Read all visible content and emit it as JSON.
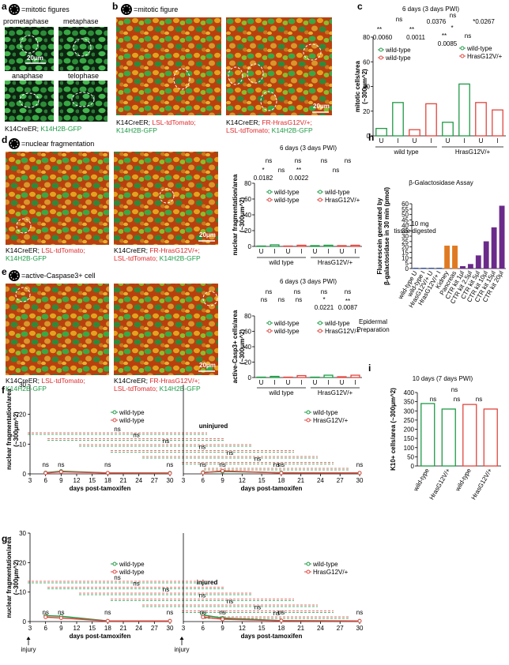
{
  "panels": {
    "a": {
      "label": "a",
      "legend": "=mitotic figures",
      "phases": [
        "prometaphase",
        "metaphase",
        "anaphase",
        "telophase"
      ],
      "scale": "20μm",
      "caption": [
        "K14CreER; ",
        "K14H2B-GFP"
      ]
    },
    "b": {
      "label": "b",
      "legend": "=mitotic figure",
      "scale": "20μm",
      "caption_left": [
        "K14CreER; ",
        "LSL-tdTomato;",
        "K14H2B-GFP"
      ],
      "caption_right": [
        "K14CreER; ",
        "FR-HrasG12V/+;",
        "LSL-tdTomato;",
        "K14H2B-GFP"
      ]
    },
    "c": {
      "label": "c"
    },
    "d": {
      "label": "d",
      "legend": "=nuclear fragmentation",
      "scale": "20μm",
      "caption_left": [
        "K14CreER; ",
        "LSL-tdTomato;",
        "K14H2B-GFP"
      ],
      "caption_right": [
        "K14CreER; ",
        "FR-HrasG12V/+;",
        "LSL-tdTomato;",
        "K14H2B-GFP"
      ]
    },
    "e": {
      "label": "e",
      "legend": "=active-Caspase3+ cell",
      "scale": "20μm",
      "caption_left": [
        "K14CreER; ",
        "LSL-tdTomato;",
        "K14H2B-GFP"
      ],
      "caption_right": [
        "K14CreER; ",
        "FR-HrasG12V/+;",
        "LSL-tdTomato;",
        "K14H2B-GFP"
      ]
    },
    "h": {
      "label": "h"
    },
    "i": {
      "label": "i"
    },
    "f": {
      "label": "f"
    },
    "g": {
      "label": "g"
    }
  },
  "chart_data": [
    {
      "type": "bar",
      "title": "6 days (3 days PWI)",
      "y_label": [
        "mitotic cells/area",
        "(~300μm^2)"
      ],
      "ylim": [
        0,
        80
      ],
      "yticks": [
        0,
        20,
        40,
        60,
        80
      ],
      "filled": false,
      "categories": [
        "U",
        "I",
        "U",
        "I",
        "U",
        "I",
        "U",
        "I"
      ],
      "groups": [
        "wild type",
        "HrasG12V/+"
      ],
      "values": [
        6,
        27,
        5,
        26,
        11,
        42,
        27,
        21
      ],
      "colors": [
        "#1f9a46",
        "#1f9a46",
        "#e0463e",
        "#e0463e",
        "#1f9a46",
        "#1f9a46",
        "#e0463e",
        "#e0463e"
      ],
      "legend": [
        {
          "name": "wild-type",
          "color": "#1f9a46"
        },
        {
          "name": "wild-type",
          "color": "#e0463e"
        },
        {
          "name": "wild-type",
          "color": "#1f9a46"
        },
        {
          "name": "HrasG12V/+",
          "color": "#e0463e"
        }
      ],
      "annotations": [
        "ns",
        "**",
        "**",
        "0.0060",
        "0.0011",
        "0.0376",
        "*",
        "ns",
        "*0.0267",
        "**",
        "ns",
        "0.0085"
      ]
    },
    {
      "type": "bar",
      "title": "6 days (3 days PWI)",
      "y_label": [
        "nuclear fragmentation/area",
        "(~300μm^2)"
      ],
      "ylim": [
        0,
        80
      ],
      "yticks": [
        0,
        20,
        40,
        60,
        80
      ],
      "filled": false,
      "categories": [
        "U",
        "I",
        "U",
        "I",
        "U",
        "I",
        "U",
        "I"
      ],
      "groups": [
        "wild type",
        "HrasG12V/+"
      ],
      "values": [
        0.5,
        2,
        0.5,
        1.5,
        1,
        1.5,
        1,
        1.5
      ],
      "colors": [
        "#1f9a46",
        "#1f9a46",
        "#e0463e",
        "#e0463e",
        "#1f9a46",
        "#1f9a46",
        "#e0463e",
        "#e0463e"
      ],
      "legend": [
        {
          "name": "wild-type",
          "color": "#1f9a46"
        },
        {
          "name": "wild-type",
          "color": "#e0463e"
        },
        {
          "name": "wild-type",
          "color": "#1f9a46"
        },
        {
          "name": "HrasG12V/+",
          "color": "#e0463e"
        }
      ],
      "annotations": [
        "ns",
        "ns",
        "*",
        "ns",
        "**",
        "0.0182",
        "0.0022",
        "ns",
        "ns",
        "ns"
      ]
    },
    {
      "type": "bar",
      "title": "6 days (3 days PWI)",
      "y_label": [
        "active-Casp3+ cells/area",
        "(~300μm^2)"
      ],
      "ylim": [
        0,
        80
      ],
      "yticks": [
        0,
        20,
        40,
        60,
        80
      ],
      "filled": false,
      "categories": [
        "U",
        "I",
        "U",
        "I",
        "U",
        "I",
        "U",
        "I"
      ],
      "groups": [
        "wild type",
        "HrasG12V/+"
      ],
      "values": [
        0.5,
        1.5,
        0.5,
        2.5,
        0.5,
        3,
        1,
        3
      ],
      "colors": [
        "#1f9a46",
        "#1f9a46",
        "#e0463e",
        "#e0463e",
        "#1f9a46",
        "#1f9a46",
        "#e0463e",
        "#e0463e"
      ],
      "legend": [
        {
          "name": "wild-type",
          "color": "#1f9a46"
        },
        {
          "name": "wild-type",
          "color": "#e0463e"
        },
        {
          "name": "wild-type",
          "color": "#1f9a46"
        },
        {
          "name": "HrasG12V/+",
          "color": "#e0463e"
        }
      ],
      "annotations": [
        "ns",
        "ns",
        "ns",
        "ns",
        "ns",
        "ns",
        "ns",
        "*",
        "**",
        "0.0221",
        "0.0087"
      ]
    },
    {
      "type": "bar",
      "title": "β-Galactosidase Assay",
      "y_label": [
        "Fluorescein generated by",
        "β-galactosidase in 30 min (pmol)"
      ],
      "ylim": [
        0,
        60
      ],
      "yticks": [
        0,
        5,
        10,
        15,
        20,
        25,
        30,
        35,
        40,
        45,
        50,
        55,
        60
      ],
      "filled": true,
      "categories": [
        "wild-type U",
        "wild-type I",
        "HrasG12V/+ U",
        "HrasG12V/+ I",
        "Kidney",
        "Pancreas",
        "CTR kit 1μl",
        "CTR kit 2.5μl",
        "CTR kit 5μl",
        "CTR kit 10μl",
        "CTR kit 15μl",
        "CTR kit 20μl"
      ],
      "values": [
        0.5,
        0.5,
        0.5,
        0.5,
        21,
        21,
        2,
        4,
        12,
        25,
        38,
        58
      ],
      "colors": [
        "#2f4f9e",
        "#2f4f9e",
        "#2f4f9e",
        "#2f4f9e",
        "#e07a22",
        "#e07a22",
        "#6a2a8a",
        "#6a2a8a",
        "#6a2a8a",
        "#6a2a8a",
        "#6a2a8a",
        "#6a2a8a"
      ],
      "annotations": [
        "~ 10 mg",
        "tissue digested",
        "Epidermal",
        "Preparation"
      ]
    },
    {
      "type": "bar",
      "title": "10 days (7 days PWI)",
      "y_label": [
        "K10+ cells/area (~300μm^2)"
      ],
      "ylim": [
        0,
        400
      ],
      "yticks": [
        0,
        50,
        100,
        150,
        200,
        250,
        300,
        350,
        400
      ],
      "filled": false,
      "categories": [
        "wild-type",
        "HrasG12V/+",
        "wild-type",
        "HrasG12V/+"
      ],
      "values": [
        340,
        310,
        335,
        310
      ],
      "colors": [
        "#1f9a46",
        "#1f9a46",
        "#e0463e",
        "#e0463e"
      ],
      "annotations": [
        "ns",
        "ns",
        "ns",
        "ns"
      ]
    },
    {
      "type": "line",
      "title": "uninjured",
      "y_label": [
        "nuclear fragmentation/area",
        "(~300μm^2)"
      ],
      "x_label": "days post-tamoxifen",
      "ylim": [
        0,
        30
      ],
      "yticks": [
        0,
        10,
        20,
        30
      ],
      "xlim": [
        3,
        30
      ],
      "xticks": [
        3,
        6,
        9,
        12,
        15,
        18,
        21,
        24,
        27,
        30
      ],
      "panels": [
        {
          "x": [
            6,
            9,
            18,
            30
          ],
          "labels": [
            "ns",
            "ns",
            "ns",
            "ns"
          ],
          "series": [
            {
              "name": "wild-type",
              "color": "#1f9a46",
              "values": [
                0.4,
                0.9,
                0.3,
                0.3
              ]
            },
            {
              "name": "wild-type",
              "color": "#e0463e",
              "values": [
                0.3,
                0.7,
                0.3,
                0.2
              ]
            }
          ]
        },
        {
          "x": [
            6,
            9,
            18,
            30
          ],
          "labels": [
            "ns",
            "ns",
            "ns",
            "ns"
          ],
          "series": [
            {
              "name": "wild-type",
              "color": "#1f9a46",
              "values": [
                0.5,
                0.8,
                0.4,
                0.3
              ]
            },
            {
              "name": "HrasG12V/+",
              "color": "#e0463e",
              "values": [
                0.4,
                1.0,
                0.3,
                0.3
              ]
            }
          ]
        }
      ],
      "annotations": [
        "ns",
        "ns",
        "ns",
        "ns",
        "ns",
        "ns",
        "ns"
      ]
    },
    {
      "type": "line",
      "title": "injured",
      "y_label": [
        "nuclear fragmentation/area",
        "(~300μm^2)"
      ],
      "x_label": "days post-tamoxifen",
      "ylim": [
        0,
        30
      ],
      "yticks": [
        0,
        10,
        20,
        30
      ],
      "xlim": [
        3,
        30
      ],
      "xticks": [
        3,
        6,
        9,
        12,
        15,
        18,
        21,
        24,
        27,
        30
      ],
      "panels": [
        {
          "x": [
            6,
            9,
            18,
            30
          ],
          "labels": [
            "ns",
            "ns",
            "ns",
            "ns"
          ],
          "series": [
            {
              "name": "wild-type",
              "color": "#1f9a46",
              "values": [
                2,
                1.8,
                0.2,
                0.2
              ]
            },
            {
              "name": "wild-type",
              "color": "#e0463e",
              "values": [
                1.5,
                1.2,
                0.2,
                0.2
              ]
            }
          ]
        },
        {
          "x": [
            6,
            9,
            18,
            30
          ],
          "labels": [
            "ns",
            "ns",
            "ns",
            "ns"
          ],
          "series": [
            {
              "name": "wild-type",
              "color": "#1f9a46",
              "values": [
                2.2,
                1.2,
                0.3,
                0.2
              ]
            },
            {
              "name": "HrasG12V/+",
              "color": "#e0463e",
              "values": [
                1.5,
                0.8,
                0.3,
                0.2
              ]
            }
          ]
        }
      ],
      "annotations": [
        "ns",
        "ns",
        "ns",
        "ns",
        "ns",
        "ns",
        "ns"
      ],
      "markers": [
        "injury",
        "injury"
      ]
    }
  ]
}
